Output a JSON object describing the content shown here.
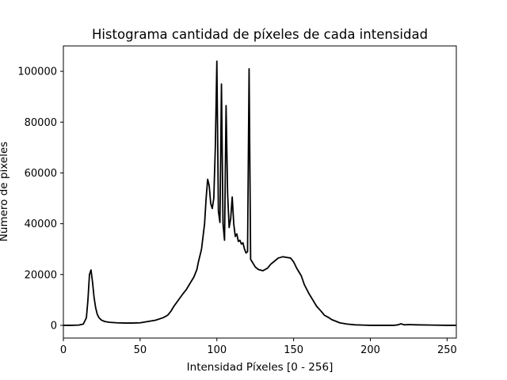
{
  "chart_data": {
    "type": "line",
    "title": "Histograma cantidad de píxeles de cada intensidad",
    "xlabel": "Intensidad Píxeles [0 - 256]",
    "ylabel": "Número de píxeles",
    "xlim": [
      0,
      256
    ],
    "ylim": [
      -5000,
      110000
    ],
    "xticks": [
      0,
      50,
      100,
      150,
      200,
      250
    ],
    "yticks": [
      0,
      20000,
      40000,
      60000,
      80000,
      100000
    ],
    "grid": false,
    "legend": "none",
    "line_color": "#000000",
    "series": [
      {
        "x": [
          0,
          5,
          10,
          13,
          15,
          16,
          17,
          18,
          19,
          20,
          21,
          22,
          23,
          24,
          25,
          27,
          30,
          35,
          40,
          45,
          50,
          55,
          60,
          65,
          68,
          70,
          72,
          75,
          78,
          80,
          82,
          85,
          87,
          88,
          90,
          91,
          92,
          93,
          94,
          95,
          96,
          97,
          98,
          99,
          100,
          101,
          102,
          103,
          104,
          105,
          106,
          107,
          108,
          109,
          110,
          111,
          112,
          113,
          114,
          115,
          116,
          117,
          118,
          119,
          120,
          121,
          122,
          123,
          124,
          125,
          127,
          130,
          133,
          135,
          138,
          140,
          143,
          145,
          148,
          150,
          152,
          155,
          157,
          160,
          163,
          165,
          168,
          170,
          173,
          175,
          178,
          180,
          185,
          190,
          195,
          200,
          205,
          210,
          215,
          218,
          220,
          222,
          225,
          230,
          240,
          250,
          256
        ],
        "y": [
          0,
          0,
          100,
          500,
          3000,
          10000,
          20000,
          21800,
          17000,
          11000,
          7000,
          4500,
          3200,
          2500,
          2000,
          1500,
          1200,
          1000,
          900,
          900,
          1000,
          1500,
          2000,
          3000,
          4000,
          5500,
          7500,
          10000,
          12500,
          14000,
          16000,
          19000,
          22000,
          25000,
          30000,
          35000,
          40000,
          50000,
          57500,
          55000,
          48000,
          46000,
          50000,
          70000,
          104000,
          45000,
          40500,
          95000,
          40000,
          33500,
          86500,
          52000,
          38500,
          42000,
          50500,
          40000,
          35000,
          36000,
          33000,
          33500,
          32000,
          32500,
          30000,
          28500,
          29000,
          101000,
          26000,
          25000,
          24000,
          23000,
          22000,
          21500,
          22500,
          24000,
          25500,
          26500,
          27000,
          26800,
          26500,
          25000,
          22500,
          19500,
          16000,
          12500,
          9500,
          7500,
          5500,
          4000,
          3000,
          2200,
          1500,
          1000,
          500,
          200,
          100,
          0,
          0,
          0,
          0,
          200,
          600,
          200,
          300,
          200,
          100,
          0,
          0
        ]
      }
    ]
  }
}
